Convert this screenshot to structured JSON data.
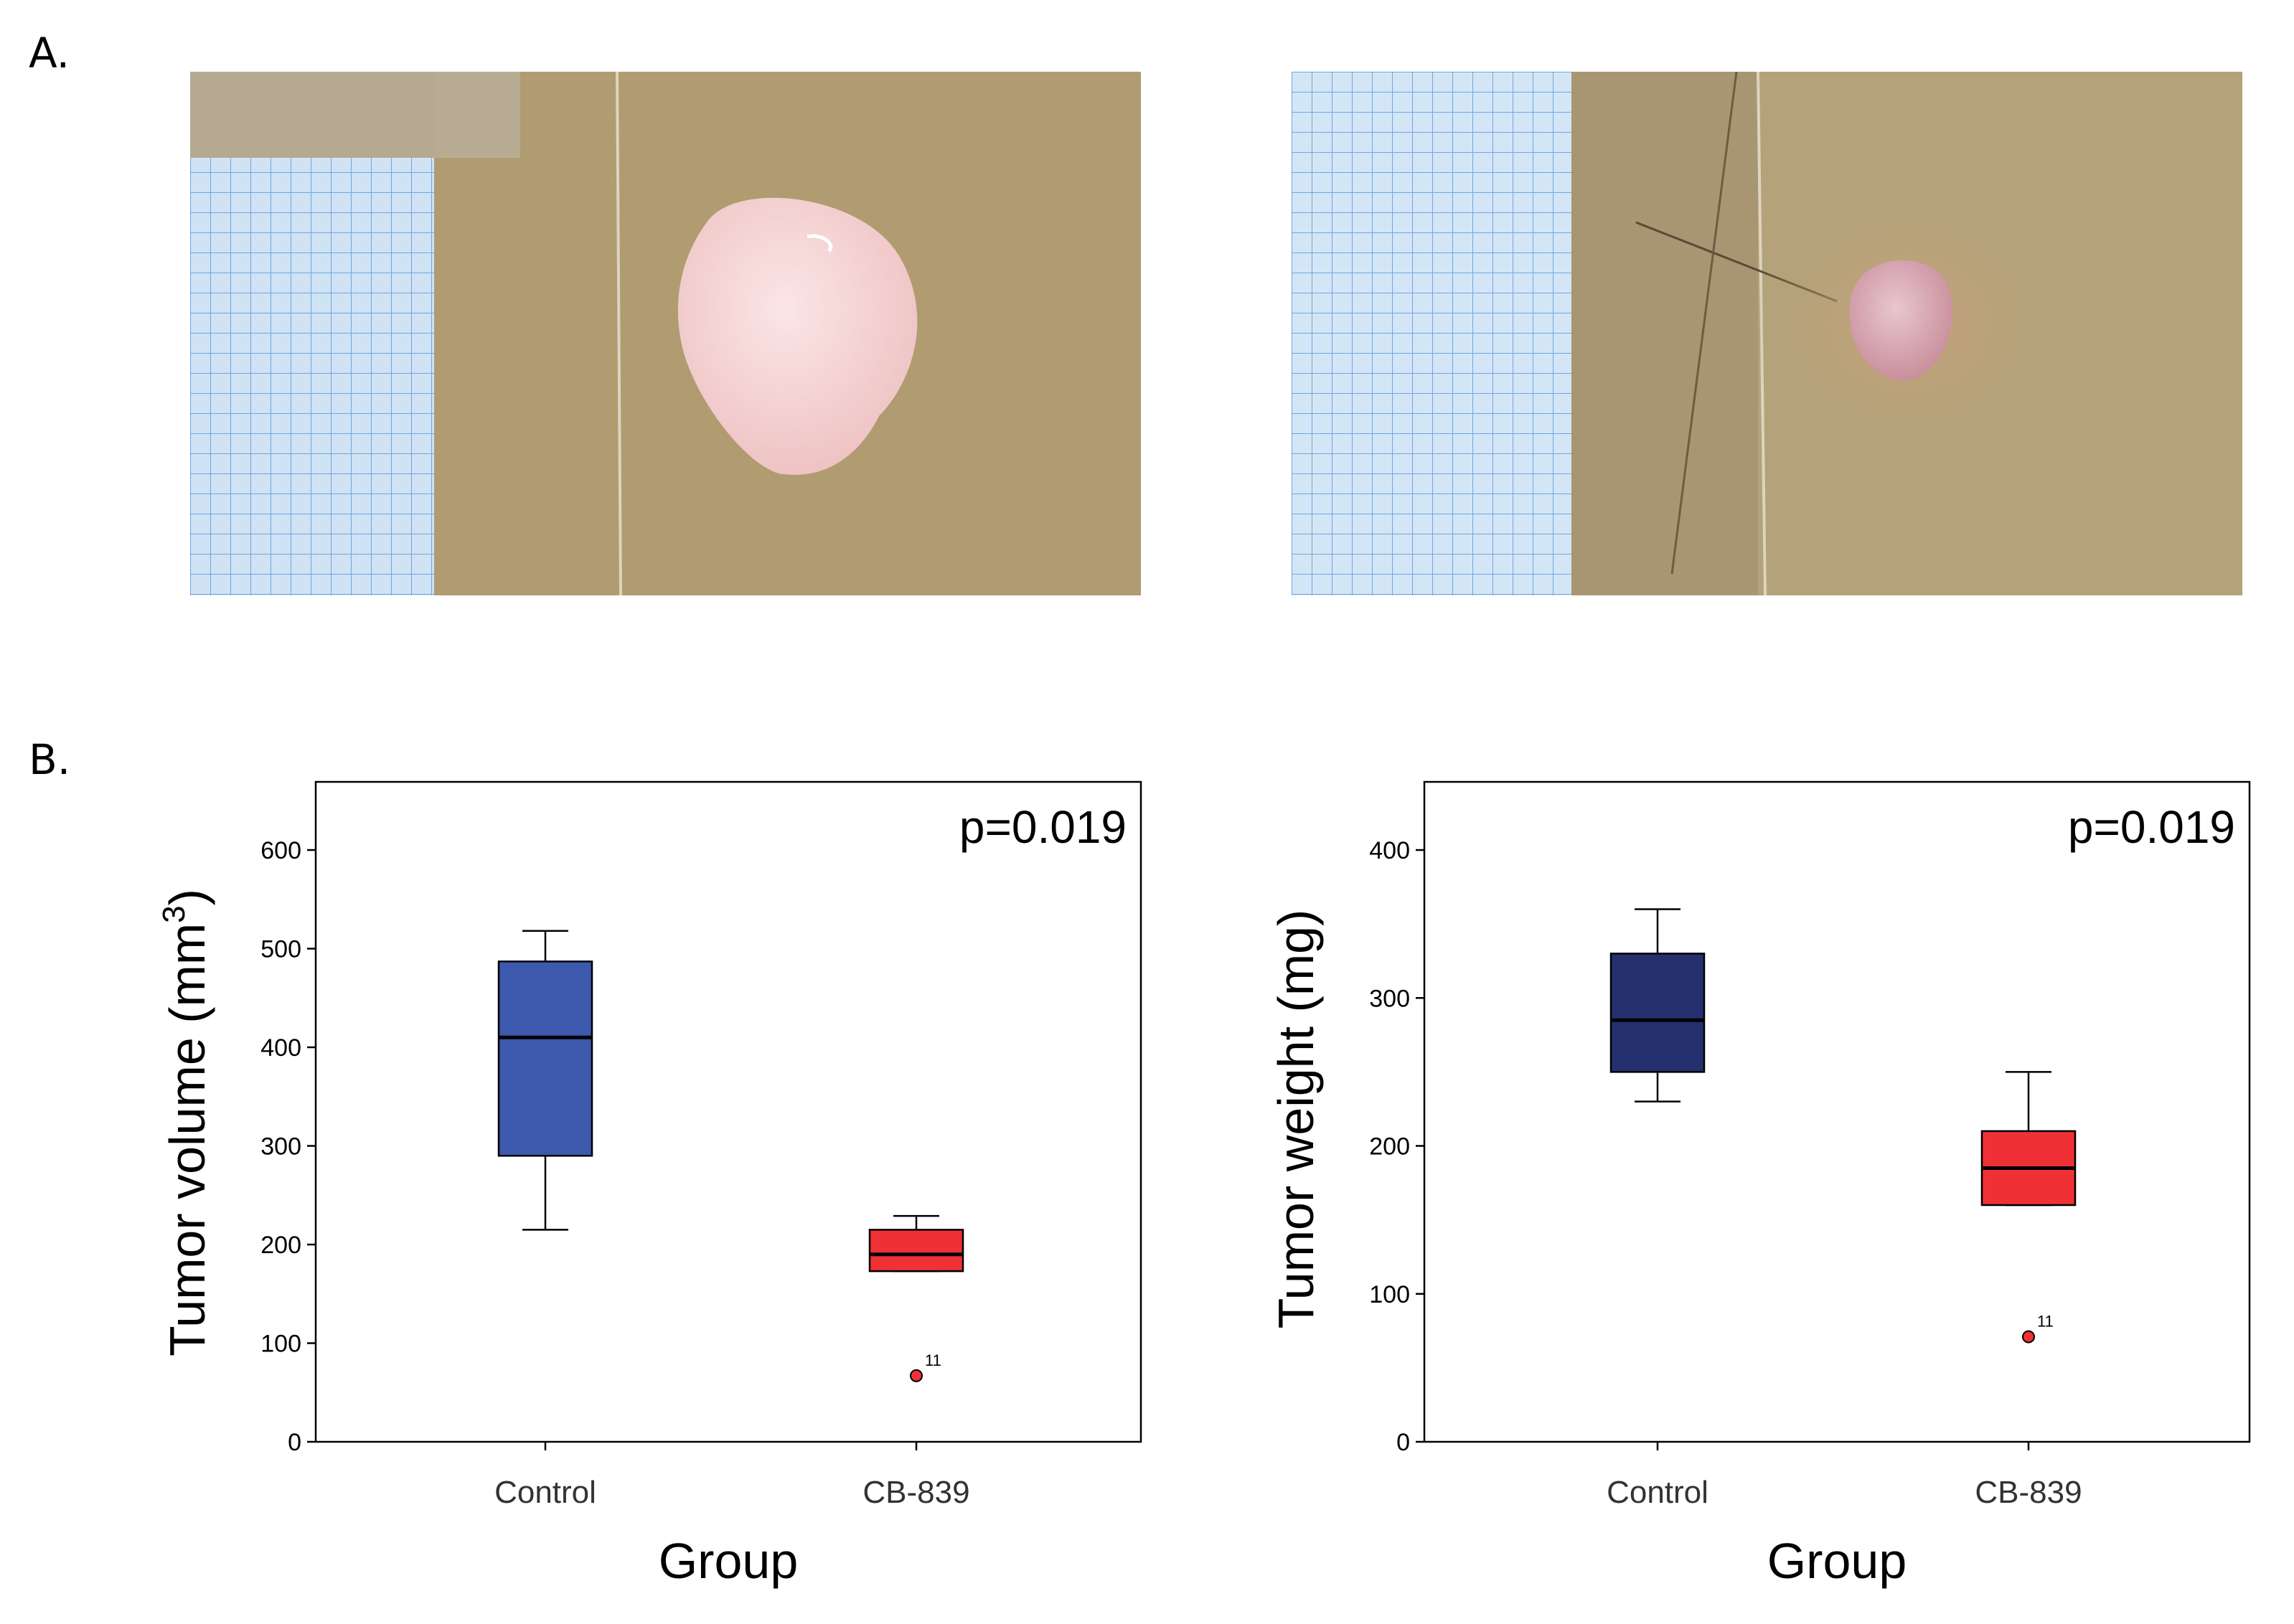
{
  "panels": {
    "a": "A.",
    "b": "B."
  },
  "photos": [
    {
      "name": "control-tumor-photo",
      "paper": "#cfe3f5",
      "grid": "#6fa6e0",
      "board": "#a8946a",
      "tumor": "#efc3c4",
      "tumor_highlight": "#fbe6e6"
    },
    {
      "name": "cb839-tumor-photo",
      "paper": "#d3e6f6",
      "grid": "#6fa6e0",
      "board": "#b4a27a",
      "tumor": "#c98f9c",
      "tumor_highlight": "#e8c6d0"
    }
  ],
  "chart_data": [
    {
      "type": "box",
      "title": "",
      "ylabel": "Tumor volume (mm",
      "ylabel_sup": "3",
      "ylabel_close": ")",
      "xlabel": "Group",
      "annotation": "p=0.019",
      "yticks": [
        0,
        100,
        200,
        300,
        400,
        500,
        600
      ],
      "ylim": [
        0,
        600
      ],
      "grid": false,
      "categories": [
        "Control",
        "CB-839"
      ],
      "boxes": [
        {
          "category": "Control",
          "whisker_low": 215,
          "q1": 290,
          "median": 410,
          "q3": 487,
          "whisker_high": 518,
          "color": "#3d59ad"
        },
        {
          "category": "CB-839",
          "whisker_low": 173,
          "q1": 173,
          "median": 190,
          "q3": 215,
          "whisker_high": 229,
          "color": "#ef3135",
          "outlier": {
            "value": 67,
            "label": "11"
          }
        }
      ]
    },
    {
      "type": "box",
      "title": "",
      "ylabel": "Tumor weight (mg)",
      "ylabel_sup": "",
      "ylabel_close": "",
      "xlabel": "Group",
      "annotation": "p=0.019",
      "yticks": [
        0,
        100,
        200,
        300,
        400
      ],
      "ylim": [
        0,
        400
      ],
      "grid": false,
      "categories": [
        "Control",
        "CB-839"
      ],
      "boxes": [
        {
          "category": "Control",
          "whisker_low": 230,
          "q1": 250,
          "median": 285,
          "q3": 330,
          "whisker_high": 360,
          "color": "#24306e"
        },
        {
          "category": "CB-839",
          "whisker_low": 160,
          "q1": 160,
          "median": 185,
          "q3": 210,
          "whisker_high": 250,
          "color": "#ef3135",
          "outlier": {
            "value": 71,
            "label": "11"
          }
        }
      ]
    }
  ]
}
